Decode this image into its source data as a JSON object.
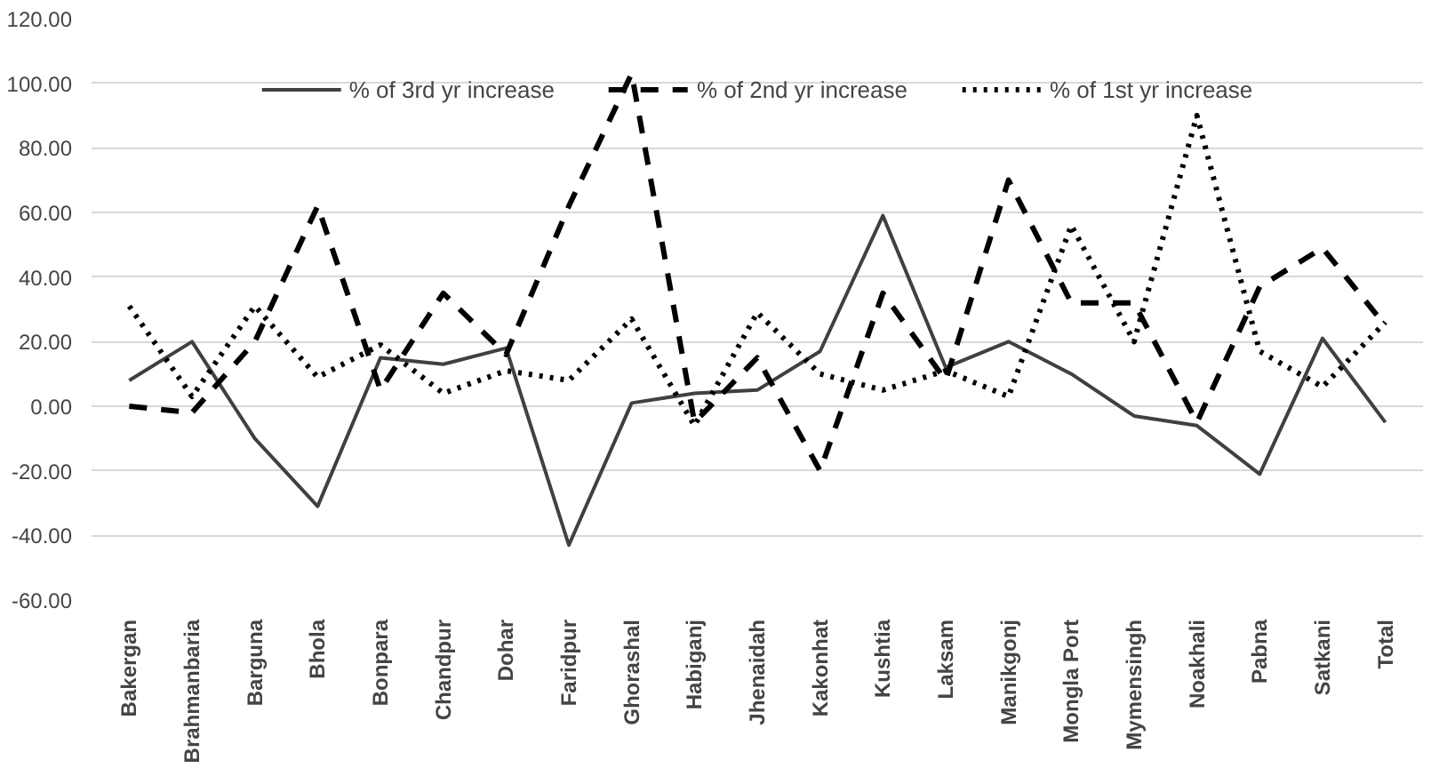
{
  "chart_data": {
    "type": "line",
    "categories": [
      "Bakergan",
      "Brahmanbaria",
      "Barguna",
      "Bhola",
      "Bonpara",
      "Chandpur",
      "Dohar",
      "Faridpur",
      "Ghorashal",
      "Habiganj",
      "Jhenaidah",
      "Kakonhat",
      "Kushtia",
      "Laksam",
      "Manikgonj",
      "Mongla Port",
      "Mymensingh",
      "Noakhali",
      "Pabna",
      "Satkani",
      "Total"
    ],
    "series": [
      {
        "name": "% of 3rd yr increase",
        "color": "#404040",
        "line_style": "solid",
        "values": [
          8,
          20,
          -10,
          -31,
          15,
          13,
          18,
          -43,
          1,
          4,
          5,
          17,
          59,
          12,
          20,
          10,
          -3,
          -6,
          -21,
          21,
          -5
        ]
      },
      {
        "name": "% of 2nd yr increase",
        "color": "#000000",
        "line_style": "dashed",
        "values": [
          0,
          -2,
          20,
          62,
          5,
          35,
          16,
          62,
          103,
          -5,
          15,
          -20,
          35,
          8,
          70,
          32,
          32,
          -5,
          37,
          49,
          25
        ]
      },
      {
        "name": "% of 1st yr increase",
        "color": "#000000",
        "line_style": "dotted",
        "values": [
          31,
          3,
          31,
          9,
          19,
          4,
          11,
          8,
          27,
          -6,
          29,
          10,
          5,
          11,
          3,
          56,
          20,
          90,
          17,
          6,
          26
        ]
      }
    ],
    "ylim": [
      -60,
      120
    ],
    "yticks": [
      {
        "value": -60,
        "label": "-60.00"
      },
      {
        "value": -40,
        "label": "-40.00"
      },
      {
        "value": -20,
        "label": "-20.00"
      },
      {
        "value": 0,
        "label": "0.00"
      },
      {
        "value": 20,
        "label": "20.00"
      },
      {
        "value": 40,
        "label": "40.00"
      },
      {
        "value": 60,
        "label": "60.00"
      },
      {
        "value": 80,
        "label": "80.00"
      },
      {
        "value": 100,
        "label": "100.00"
      },
      {
        "value": 120,
        "label": "120.00"
      }
    ],
    "grid": "y",
    "legend": "top",
    "marker": "none"
  }
}
